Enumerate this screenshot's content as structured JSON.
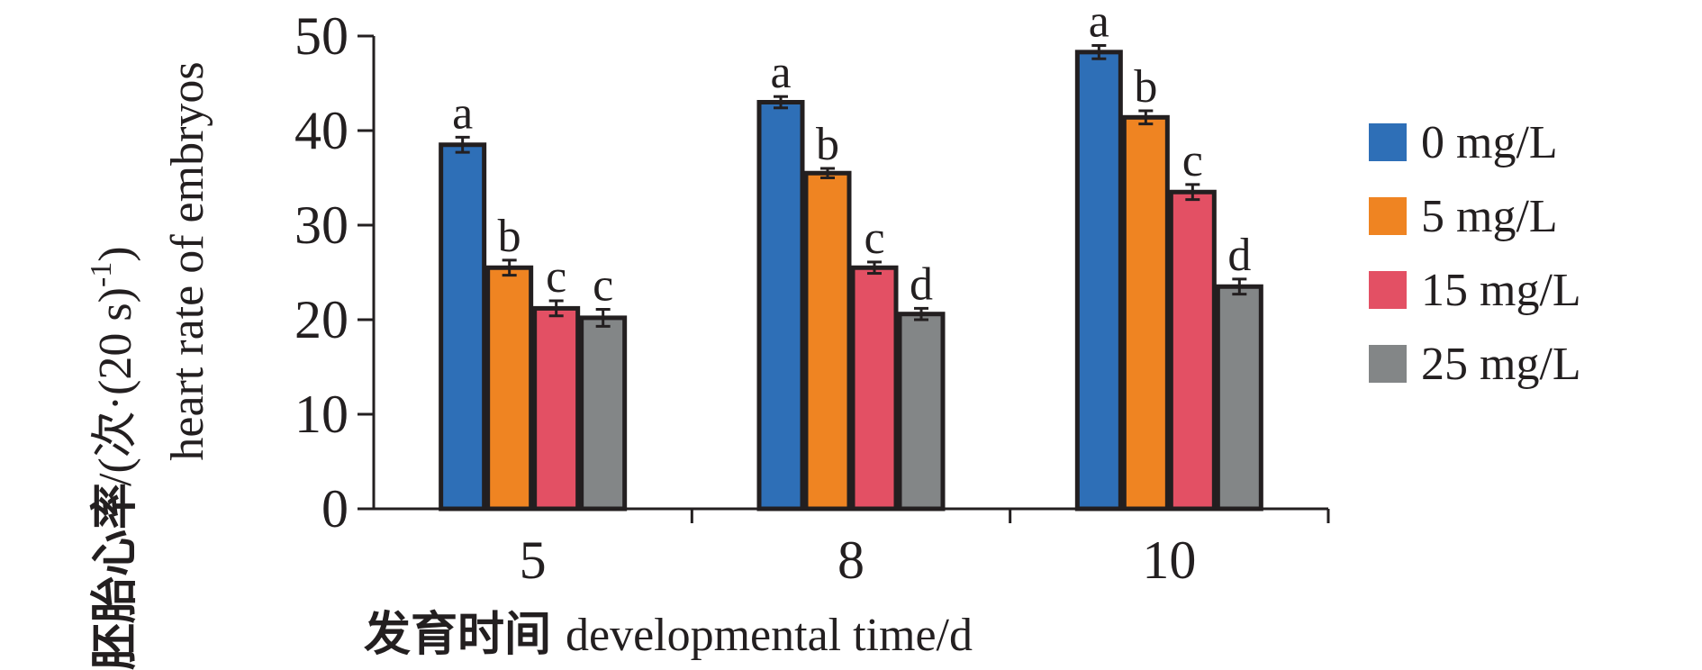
{
  "chart_data": {
    "type": "bar",
    "categories": [
      "5",
      "8",
      "10"
    ],
    "series": [
      {
        "name": "0 mg/L",
        "color": "#2e6fb7",
        "values": [
          38.5,
          43.0,
          48.3
        ],
        "errors": [
          0.8,
          0.6,
          0.7
        ],
        "letters": [
          "a",
          "a",
          "a"
        ]
      },
      {
        "name": "5 mg/L",
        "color": "#ef8422",
        "values": [
          25.5,
          35.5,
          41.4
        ],
        "errors": [
          0.8,
          0.5,
          0.7
        ],
        "letters": [
          "b",
          "b",
          "b"
        ]
      },
      {
        "name": "15 mg/L",
        "color": "#e35064",
        "values": [
          21.2,
          25.5,
          33.5
        ],
        "errors": [
          0.8,
          0.6,
          0.8
        ],
        "letters": [
          "c",
          "c",
          "c"
        ]
      },
      {
        "name": "25 mg/L",
        "color": "#838687",
        "values": [
          20.2,
          20.6,
          23.5
        ],
        "errors": [
          0.9,
          0.6,
          0.8
        ],
        "letters": [
          "c",
          "d",
          "d"
        ]
      }
    ],
    "yticks": [
      "0",
      "10",
      "20",
      "30",
      "40",
      "50"
    ],
    "ylim": [
      0,
      50
    ],
    "xlabel_cn": "发育时间",
    "xlabel_en": "developmental time/d",
    "ylabel_cn": "胚胎心率",
    "ylabel_cn_unit": "/(次·(20 s)",
    "ylabel_sup": "-1",
    "ylabel_close": ")",
    "ylabel_en": "heart rate of embryos",
    "legend_position": "right",
    "grid": false
  }
}
